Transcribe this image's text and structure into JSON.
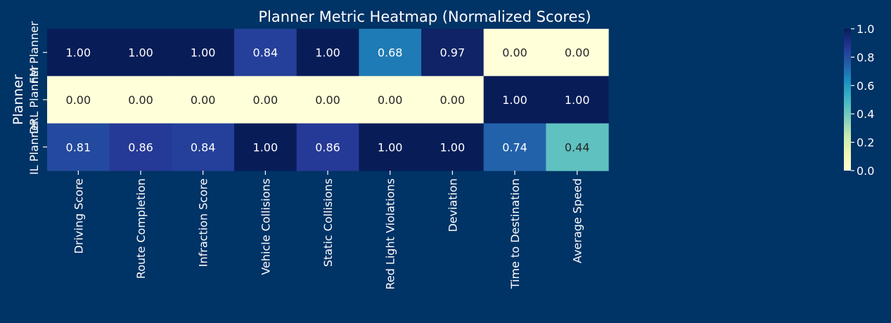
{
  "chart_data": {
    "type": "heatmap",
    "title": "Planner Metric Heatmap (Normalized Scores)",
    "xlabel": "",
    "ylabel": "Planner",
    "columns": [
      "Driving Score",
      "Route Completion",
      "Infraction Score",
      "Vehicle Collisions",
      "Static Collisions",
      "Red Light Violations",
      "Deviation",
      "Time to Destination",
      "Average Speed"
    ],
    "rows": [
      "FM Planner",
      "DRL Planner",
      "IL Planner"
    ],
    "values": [
      [
        1.0,
        1.0,
        1.0,
        0.84,
        1.0,
        0.68,
        0.97,
        0.0,
        0.0
      ],
      [
        0.0,
        0.0,
        0.0,
        0.0,
        0.0,
        0.0,
        0.0,
        1.0,
        1.0
      ],
      [
        0.81,
        0.86,
        0.84,
        1.0,
        0.86,
        1.0,
        1.0,
        0.74,
        0.44
      ]
    ],
    "value_format": "0.00",
    "colormap": "YlGnBu",
    "vmin": 0.0,
    "vmax": 1.0,
    "colorbar_ticks": [
      "0.0",
      "0.2",
      "0.4",
      "0.6",
      "0.8",
      "1.0"
    ]
  },
  "colors": {
    "background": "#003366",
    "text": "#ffffff"
  }
}
